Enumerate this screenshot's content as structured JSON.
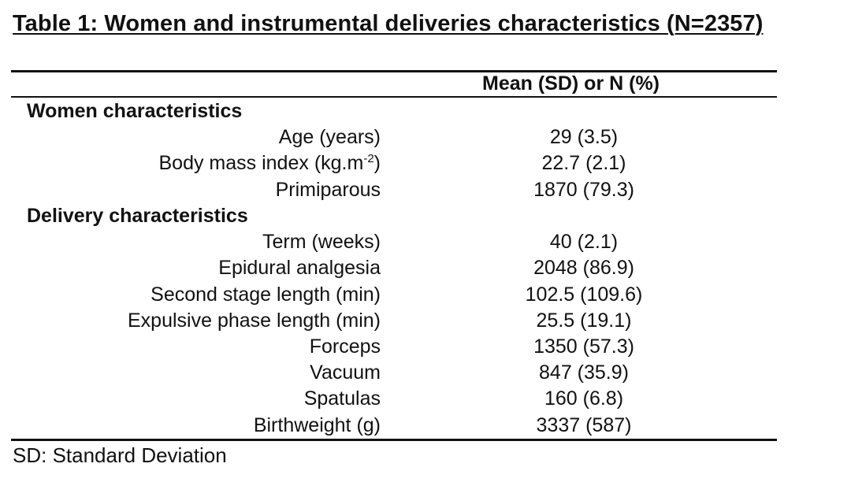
{
  "title": "Table 1: Women and instrumental deliveries characteristics (N=2357)",
  "column_header": "Mean (SD) or N (%)",
  "sections": [
    {
      "heading": "Women characteristics",
      "rows": [
        {
          "label": "Age (years)",
          "value": "29 (3.5)"
        },
        {
          "label_prefix": "Body mass index (kg.m",
          "label_sup": "-2",
          "label_suffix": ")",
          "value": "22.7 (2.1)"
        },
        {
          "label": "Primiparous",
          "value": "1870 (79.3)"
        }
      ]
    },
    {
      "heading": "Delivery characteristics",
      "rows": [
        {
          "label": "Term (weeks)",
          "value": "40 (2.1)"
        },
        {
          "label": "Epidural analgesia",
          "value": "2048 (86.9)"
        },
        {
          "label": "Second stage length (min)",
          "value": "102.5 (109.6)"
        },
        {
          "label": "Expulsive phase length (min)",
          "value": "25.5 (19.1)"
        },
        {
          "label": "Forceps",
          "value": "1350 (57.3)"
        },
        {
          "label": "Vacuum",
          "value": "847 (35.9)"
        },
        {
          "label": "Spatulas",
          "value": "160 (6.8)"
        },
        {
          "label": "Birthweight (g)",
          "value": "3337 (587)"
        }
      ]
    }
  ],
  "footnote": "SD: Standard Deviation"
}
